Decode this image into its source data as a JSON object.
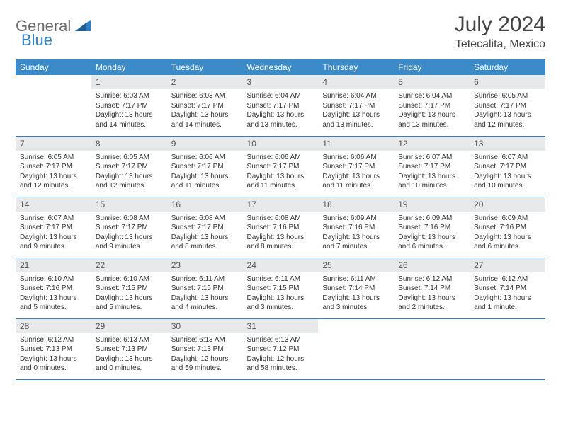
{
  "logo": {
    "text1": "General",
    "text2": "Blue"
  },
  "title": "July 2024",
  "location": "Tetecalita, Mexico",
  "colors": {
    "header_bg": "#3b8bc8",
    "header_text": "#ffffff",
    "daynum_bg": "#e8e9ea",
    "border": "#2f7fc2",
    "logo_gray": "#6b6b6b",
    "logo_blue": "#2f7fc2",
    "text": "#333333"
  },
  "days_of_week": [
    "Sunday",
    "Monday",
    "Tuesday",
    "Wednesday",
    "Thursday",
    "Friday",
    "Saturday"
  ],
  "weeks": [
    [
      null,
      {
        "n": "1",
        "sr": "Sunrise: 6:03 AM",
        "ss": "Sunset: 7:17 PM",
        "dl": "Daylight: 13 hours and 14 minutes."
      },
      {
        "n": "2",
        "sr": "Sunrise: 6:03 AM",
        "ss": "Sunset: 7:17 PM",
        "dl": "Daylight: 13 hours and 14 minutes."
      },
      {
        "n": "3",
        "sr": "Sunrise: 6:04 AM",
        "ss": "Sunset: 7:17 PM",
        "dl": "Daylight: 13 hours and 13 minutes."
      },
      {
        "n": "4",
        "sr": "Sunrise: 6:04 AM",
        "ss": "Sunset: 7:17 PM",
        "dl": "Daylight: 13 hours and 13 minutes."
      },
      {
        "n": "5",
        "sr": "Sunrise: 6:04 AM",
        "ss": "Sunset: 7:17 PM",
        "dl": "Daylight: 13 hours and 13 minutes."
      },
      {
        "n": "6",
        "sr": "Sunrise: 6:05 AM",
        "ss": "Sunset: 7:17 PM",
        "dl": "Daylight: 13 hours and 12 minutes."
      }
    ],
    [
      {
        "n": "7",
        "sr": "Sunrise: 6:05 AM",
        "ss": "Sunset: 7:17 PM",
        "dl": "Daylight: 13 hours and 12 minutes."
      },
      {
        "n": "8",
        "sr": "Sunrise: 6:05 AM",
        "ss": "Sunset: 7:17 PM",
        "dl": "Daylight: 13 hours and 12 minutes."
      },
      {
        "n": "9",
        "sr": "Sunrise: 6:06 AM",
        "ss": "Sunset: 7:17 PM",
        "dl": "Daylight: 13 hours and 11 minutes."
      },
      {
        "n": "10",
        "sr": "Sunrise: 6:06 AM",
        "ss": "Sunset: 7:17 PM",
        "dl": "Daylight: 13 hours and 11 minutes."
      },
      {
        "n": "11",
        "sr": "Sunrise: 6:06 AM",
        "ss": "Sunset: 7:17 PM",
        "dl": "Daylight: 13 hours and 11 minutes."
      },
      {
        "n": "12",
        "sr": "Sunrise: 6:07 AM",
        "ss": "Sunset: 7:17 PM",
        "dl": "Daylight: 13 hours and 10 minutes."
      },
      {
        "n": "13",
        "sr": "Sunrise: 6:07 AM",
        "ss": "Sunset: 7:17 PM",
        "dl": "Daylight: 13 hours and 10 minutes."
      }
    ],
    [
      {
        "n": "14",
        "sr": "Sunrise: 6:07 AM",
        "ss": "Sunset: 7:17 PM",
        "dl": "Daylight: 13 hours and 9 minutes."
      },
      {
        "n": "15",
        "sr": "Sunrise: 6:08 AM",
        "ss": "Sunset: 7:17 PM",
        "dl": "Daylight: 13 hours and 9 minutes."
      },
      {
        "n": "16",
        "sr": "Sunrise: 6:08 AM",
        "ss": "Sunset: 7:17 PM",
        "dl": "Daylight: 13 hours and 8 minutes."
      },
      {
        "n": "17",
        "sr": "Sunrise: 6:08 AM",
        "ss": "Sunset: 7:16 PM",
        "dl": "Daylight: 13 hours and 8 minutes."
      },
      {
        "n": "18",
        "sr": "Sunrise: 6:09 AM",
        "ss": "Sunset: 7:16 PM",
        "dl": "Daylight: 13 hours and 7 minutes."
      },
      {
        "n": "19",
        "sr": "Sunrise: 6:09 AM",
        "ss": "Sunset: 7:16 PM",
        "dl": "Daylight: 13 hours and 6 minutes."
      },
      {
        "n": "20",
        "sr": "Sunrise: 6:09 AM",
        "ss": "Sunset: 7:16 PM",
        "dl": "Daylight: 13 hours and 6 minutes."
      }
    ],
    [
      {
        "n": "21",
        "sr": "Sunrise: 6:10 AM",
        "ss": "Sunset: 7:16 PM",
        "dl": "Daylight: 13 hours and 5 minutes."
      },
      {
        "n": "22",
        "sr": "Sunrise: 6:10 AM",
        "ss": "Sunset: 7:15 PM",
        "dl": "Daylight: 13 hours and 5 minutes."
      },
      {
        "n": "23",
        "sr": "Sunrise: 6:11 AM",
        "ss": "Sunset: 7:15 PM",
        "dl": "Daylight: 13 hours and 4 minutes."
      },
      {
        "n": "24",
        "sr": "Sunrise: 6:11 AM",
        "ss": "Sunset: 7:15 PM",
        "dl": "Daylight: 13 hours and 3 minutes."
      },
      {
        "n": "25",
        "sr": "Sunrise: 6:11 AM",
        "ss": "Sunset: 7:14 PM",
        "dl": "Daylight: 13 hours and 3 minutes."
      },
      {
        "n": "26",
        "sr": "Sunrise: 6:12 AM",
        "ss": "Sunset: 7:14 PM",
        "dl": "Daylight: 13 hours and 2 minutes."
      },
      {
        "n": "27",
        "sr": "Sunrise: 6:12 AM",
        "ss": "Sunset: 7:14 PM",
        "dl": "Daylight: 13 hours and 1 minute."
      }
    ],
    [
      {
        "n": "28",
        "sr": "Sunrise: 6:12 AM",
        "ss": "Sunset: 7:13 PM",
        "dl": "Daylight: 13 hours and 0 minutes."
      },
      {
        "n": "29",
        "sr": "Sunrise: 6:13 AM",
        "ss": "Sunset: 7:13 PM",
        "dl": "Daylight: 13 hours and 0 minutes."
      },
      {
        "n": "30",
        "sr": "Sunrise: 6:13 AM",
        "ss": "Sunset: 7:13 PM",
        "dl": "Daylight: 12 hours and 59 minutes."
      },
      {
        "n": "31",
        "sr": "Sunrise: 6:13 AM",
        "ss": "Sunset: 7:12 PM",
        "dl": "Daylight: 12 hours and 58 minutes."
      },
      null,
      null,
      null
    ]
  ]
}
